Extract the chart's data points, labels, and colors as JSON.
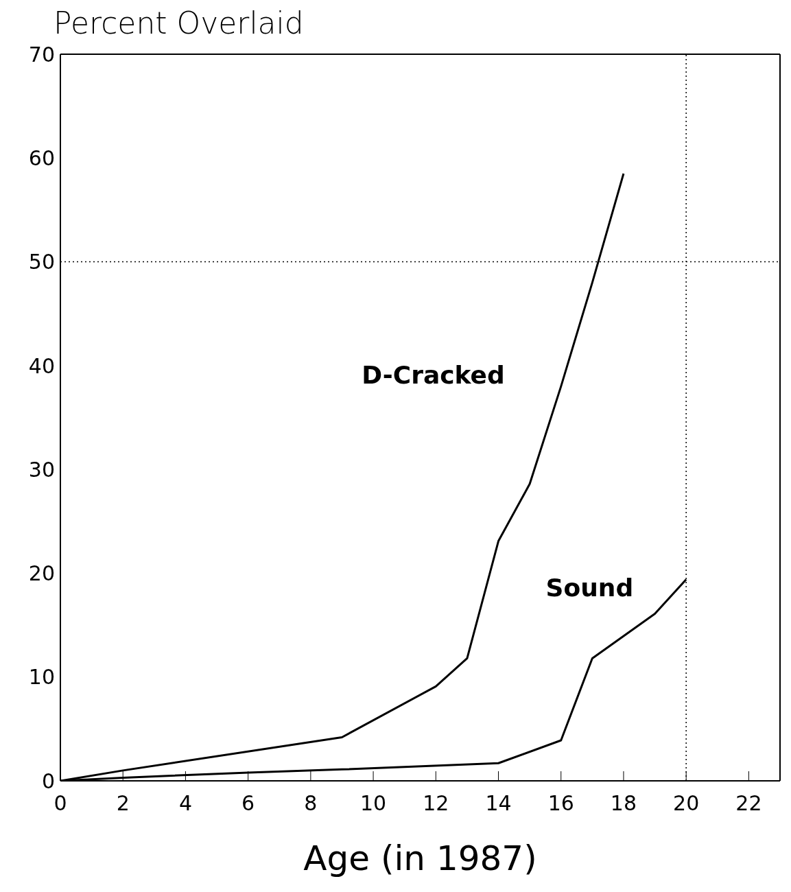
{
  "chart_data": {
    "type": "line",
    "ylabel": "Percent Overlaid",
    "xlabel": "Age (in 1987)",
    "xlim": [
      0,
      23
    ],
    "xticks": [
      0,
      2,
      4,
      6,
      8,
      10,
      12,
      14,
      16,
      18,
      20,
      22
    ],
    "ylim": [
      0,
      70
    ],
    "yticks": [
      0,
      10,
      20,
      30,
      40,
      50,
      60,
      70
    ],
    "marker": "none",
    "line_style": "solid",
    "series": [
      {
        "name": "D-Cracked",
        "color": "#000000",
        "x": [
          0,
          2,
          9,
          12,
          13,
          14,
          15,
          16,
          17,
          18
        ],
        "values": [
          0,
          1,
          4.2,
          9.1,
          11.8,
          23.1,
          28.6,
          38,
          48,
          58.5
        ]
      },
      {
        "name": "Sound",
        "color": "#000000",
        "x": [
          0,
          2,
          6,
          9,
          14,
          16,
          17,
          19,
          20
        ],
        "values": [
          0,
          0.3,
          0.8,
          1.1,
          1.7,
          3.9,
          11.8,
          16.1,
          19.4
        ]
      }
    ],
    "ref_lines": [
      {
        "axis": "y",
        "value": 50,
        "line_style": "dotted",
        "color": "#000000"
      },
      {
        "axis": "x",
        "value": 20,
        "line_style": "dotted",
        "color": "#000000"
      }
    ]
  }
}
